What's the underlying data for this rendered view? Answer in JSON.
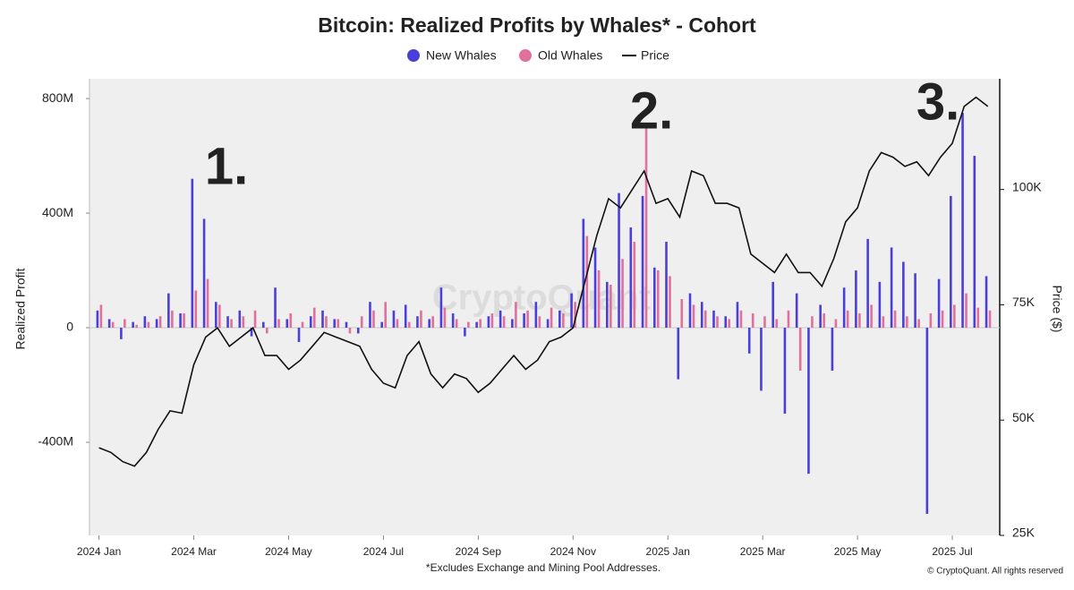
{
  "chart_data": {
    "type": "bar",
    "title": "Bitcoin: Realized Profits by Whales* - Cohort",
    "y_label": "Realized Profit",
    "y2_label": "Price ($)",
    "footnote": "*Excludes Exchange and Mining Pool Addresses.",
    "copyright": "© CryptoQuant. All rights reserved",
    "watermark": "CryptoQuant",
    "annotations": [
      "1.",
      "2.",
      "3."
    ],
    "x": [
      0,
      0.25,
      0.5,
      0.75,
      1,
      1.25,
      1.5,
      1.75,
      2,
      2.25,
      2.5,
      2.75,
      3,
      3.25,
      3.5,
      3.75,
      4,
      4.25,
      4.5,
      4.75,
      5,
      5.25,
      5.5,
      5.75,
      6,
      6.25,
      6.5,
      6.75,
      7,
      7.25,
      7.5,
      7.75,
      8,
      8.25,
      8.5,
      8.75,
      9,
      9.25,
      9.5,
      9.75,
      10,
      10.25,
      10.5,
      10.75,
      11,
      11.25,
      11.5,
      11.75,
      12,
      12.25,
      12.5,
      12.75,
      13,
      13.25,
      13.5,
      13.75,
      14,
      14.25,
      14.5,
      14.75,
      15,
      15.25,
      15.5,
      15.75,
      16,
      16.25,
      16.5,
      16.75,
      17,
      17.25,
      17.5,
      17.75,
      18,
      18.25,
      18.5,
      18.75
    ],
    "xlim": [
      -0.2,
      19.0
    ],
    "xticks": [
      {
        "value": 0,
        "label": "2024 Jan"
      },
      {
        "value": 2,
        "label": "2024 Mar"
      },
      {
        "value": 4,
        "label": "2024 May"
      },
      {
        "value": 6,
        "label": "2024 Jul"
      },
      {
        "value": 8,
        "label": "2024 Sep"
      },
      {
        "value": 10,
        "label": "2024 Nov"
      },
      {
        "value": 12,
        "label": "2025 Jan"
      },
      {
        "value": 14,
        "label": "2025 Mar"
      },
      {
        "value": 16,
        "label": "2025 May"
      },
      {
        "value": 18,
        "label": "2025 Jul"
      }
    ],
    "ylim": [
      -725000000,
      869000000
    ],
    "yticks": [
      {
        "value": -400000000,
        "label": "-400M"
      },
      0,
      {
        "value": 400000000,
        "label": "400M"
      },
      {
        "value": 800000000,
        "label": "800M"
      }
    ],
    "y2lim": [
      25000,
      124000
    ],
    "y2ticks": [
      {
        "value": 25000,
        "label": "25K"
      },
      {
        "value": 50000,
        "label": "50K"
      },
      {
        "value": 75000,
        "label": "75K"
      },
      {
        "value": 100000,
        "label": "100K"
      }
    ],
    "series": [
      {
        "name": "New Whales",
        "color": "#4b3fd9",
        "values": [
          60000000.0,
          30000000.0,
          -40000000.0,
          20000000.0,
          40000000.0,
          30000000.0,
          120000000.0,
          50000000.0,
          520000000.0,
          380000000.0,
          90000000.0,
          40000000.0,
          60000000.0,
          -30000000.0,
          20000000.0,
          140000000.0,
          30000000.0,
          -50000000.0,
          40000000.0,
          60000000.0,
          30000000.0,
          20000000.0,
          -20000000.0,
          90000000.0,
          20000000.0,
          60000000.0,
          80000000.0,
          40000000.0,
          30000000.0,
          140000000.0,
          50000000.0,
          -30000000.0,
          20000000.0,
          40000000.0,
          60000000.0,
          30000000.0,
          50000000.0,
          90000000.0,
          30000000.0,
          60000000.0,
          120000000.0,
          380000000.0,
          280000000.0,
          160000000.0,
          470000000.0,
          350000000.0,
          460000000.0,
          210000000.0,
          300000000.0,
          -180000000.0,
          120000000.0,
          90000000.0,
          60000000.0,
          40000000.0,
          90000000.0,
          -90000000.0,
          -220000000.0,
          160000000.0,
          -300000000.0,
          120000000.0,
          -510000000.0,
          80000000.0,
          -150000000.0,
          140000000.0,
          200000000.0,
          310000000.0,
          160000000.0,
          280000000.0,
          230000000.0,
          190000000.0,
          -650000000.0,
          170000000.0,
          460000000.0,
          750000000.0,
          600000000.0,
          180000000.0
        ]
      },
      {
        "name": "Old Whales",
        "color": "#e0709c",
        "values": [
          80000000.0,
          20000000.0,
          30000000.0,
          10000000.0,
          20000000.0,
          40000000.0,
          60000000.0,
          50000000.0,
          130000000.0,
          170000000.0,
          80000000.0,
          30000000.0,
          40000000.0,
          60000000.0,
          -20000000.0,
          30000000.0,
          50000000.0,
          20000000.0,
          70000000.0,
          40000000.0,
          30000000.0,
          -20000000.0,
          40000000.0,
          60000000.0,
          90000000.0,
          30000000.0,
          20000000.0,
          60000000.0,
          40000000.0,
          70000000.0,
          30000000.0,
          20000000.0,
          30000000.0,
          50000000.0,
          40000000.0,
          90000000.0,
          60000000.0,
          40000000.0,
          70000000.0,
          50000000.0,
          90000000.0,
          320000000.0,
          200000000.0,
          150000000.0,
          240000000.0,
          300000000.0,
          710000000.0,
          200000000.0,
          180000000.0,
          100000000.0,
          80000000.0,
          60000000.0,
          40000000.0,
          30000000.0,
          60000000.0,
          50000000.0,
          40000000.0,
          30000000.0,
          60000000.0,
          -150000000.0,
          40000000.0,
          50000000.0,
          30000000.0,
          60000000.0,
          50000000.0,
          80000000.0,
          40000000.0,
          60000000.0,
          40000000.0,
          30000000.0,
          50000000.0,
          60000000.0,
          80000000.0,
          120000000.0,
          70000000.0,
          60000000.0
        ]
      },
      {
        "name": "Price",
        "color": "#111111",
        "axis": "y2",
        "values": [
          44000,
          43000,
          41000,
          40000,
          43000,
          48000,
          52000,
          51500,
          62000,
          68000,
          70000,
          66000,
          68000,
          70000,
          64000,
          64000,
          61000,
          63000,
          66000,
          69000,
          68000,
          67000,
          66000,
          61000,
          58000,
          57000,
          64000,
          67000,
          60000,
          57000,
          60000,
          59000,
          56000,
          58000,
          61000,
          64000,
          61000,
          63000,
          67000,
          68000,
          70000,
          80000,
          90000,
          98000,
          96000,
          100000,
          104000,
          97000,
          98000,
          94000,
          104000,
          103000,
          97000,
          97000,
          96000,
          86000,
          84000,
          82000,
          86000,
          82000,
          82000,
          79000,
          85000,
          93000,
          96000,
          104000,
          108000,
          107000,
          105000,
          106000,
          103000,
          107000,
          110000,
          118000,
          120000,
          118000
        ]
      }
    ],
    "grid": false
  }
}
